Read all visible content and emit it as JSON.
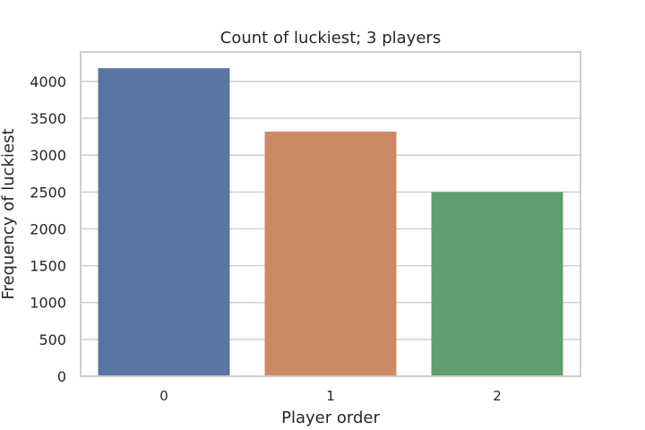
{
  "chart_data": {
    "type": "bar",
    "title": "Count of luckiest; 3 players",
    "xlabel": "Player order",
    "ylabel": "Frequency of luckiest",
    "categories": [
      "0",
      "1",
      "2"
    ],
    "values": [
      4180,
      3320,
      2500
    ],
    "colors": [
      "#5875a4",
      "#cc8963",
      "#5f9e6e"
    ],
    "ylim": [
      0,
      4400
    ],
    "yticks": [
      0,
      500,
      1000,
      1500,
      2000,
      2500,
      3000,
      3500,
      4000
    ],
    "grid": true,
    "legend": false
  }
}
